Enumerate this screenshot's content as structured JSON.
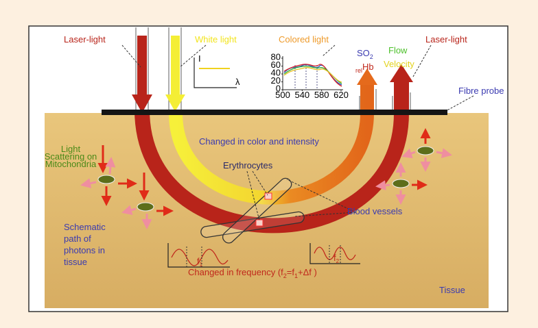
{
  "labels": {
    "laser_left": "Laser-light",
    "white_light": "White light",
    "colored_light": "Colored light",
    "so2": {
      "so": "SO",
      "sub": "2",
      "rel": "rel",
      "hb": "Hb"
    },
    "flow": "Flow",
    "velocity": "Velocity",
    "laser_right": "Laser-light",
    "fibre_probe": "Fibre probe",
    "color_change": "Changed in color and intensity",
    "erythrocytes": "Erythrocytes",
    "blood_vessels": "Blood vessels",
    "mitochondria": [
      "Light",
      "Scattering on",
      "Mitochondria"
    ],
    "schematic": [
      "Schematic",
      "path of",
      "photons in",
      "tissue"
    ],
    "tissue": "Tissue"
  },
  "intensity_plot": {
    "y_label": "I",
    "x_label": "λ"
  },
  "spectrum_plot": {
    "yticks": [
      80,
      60,
      40,
      20,
      0
    ],
    "xticks": [
      500,
      540,
      580,
      620
    ]
  },
  "frequency": {
    "f1": {
      "f": "f",
      "sub": "1"
    },
    "f2": {
      "f": "f",
      "sub": "2"
    },
    "caption": [
      "Changed in frequency (f",
      "2",
      "=f",
      "1",
      "+Δf )"
    ]
  }
}
